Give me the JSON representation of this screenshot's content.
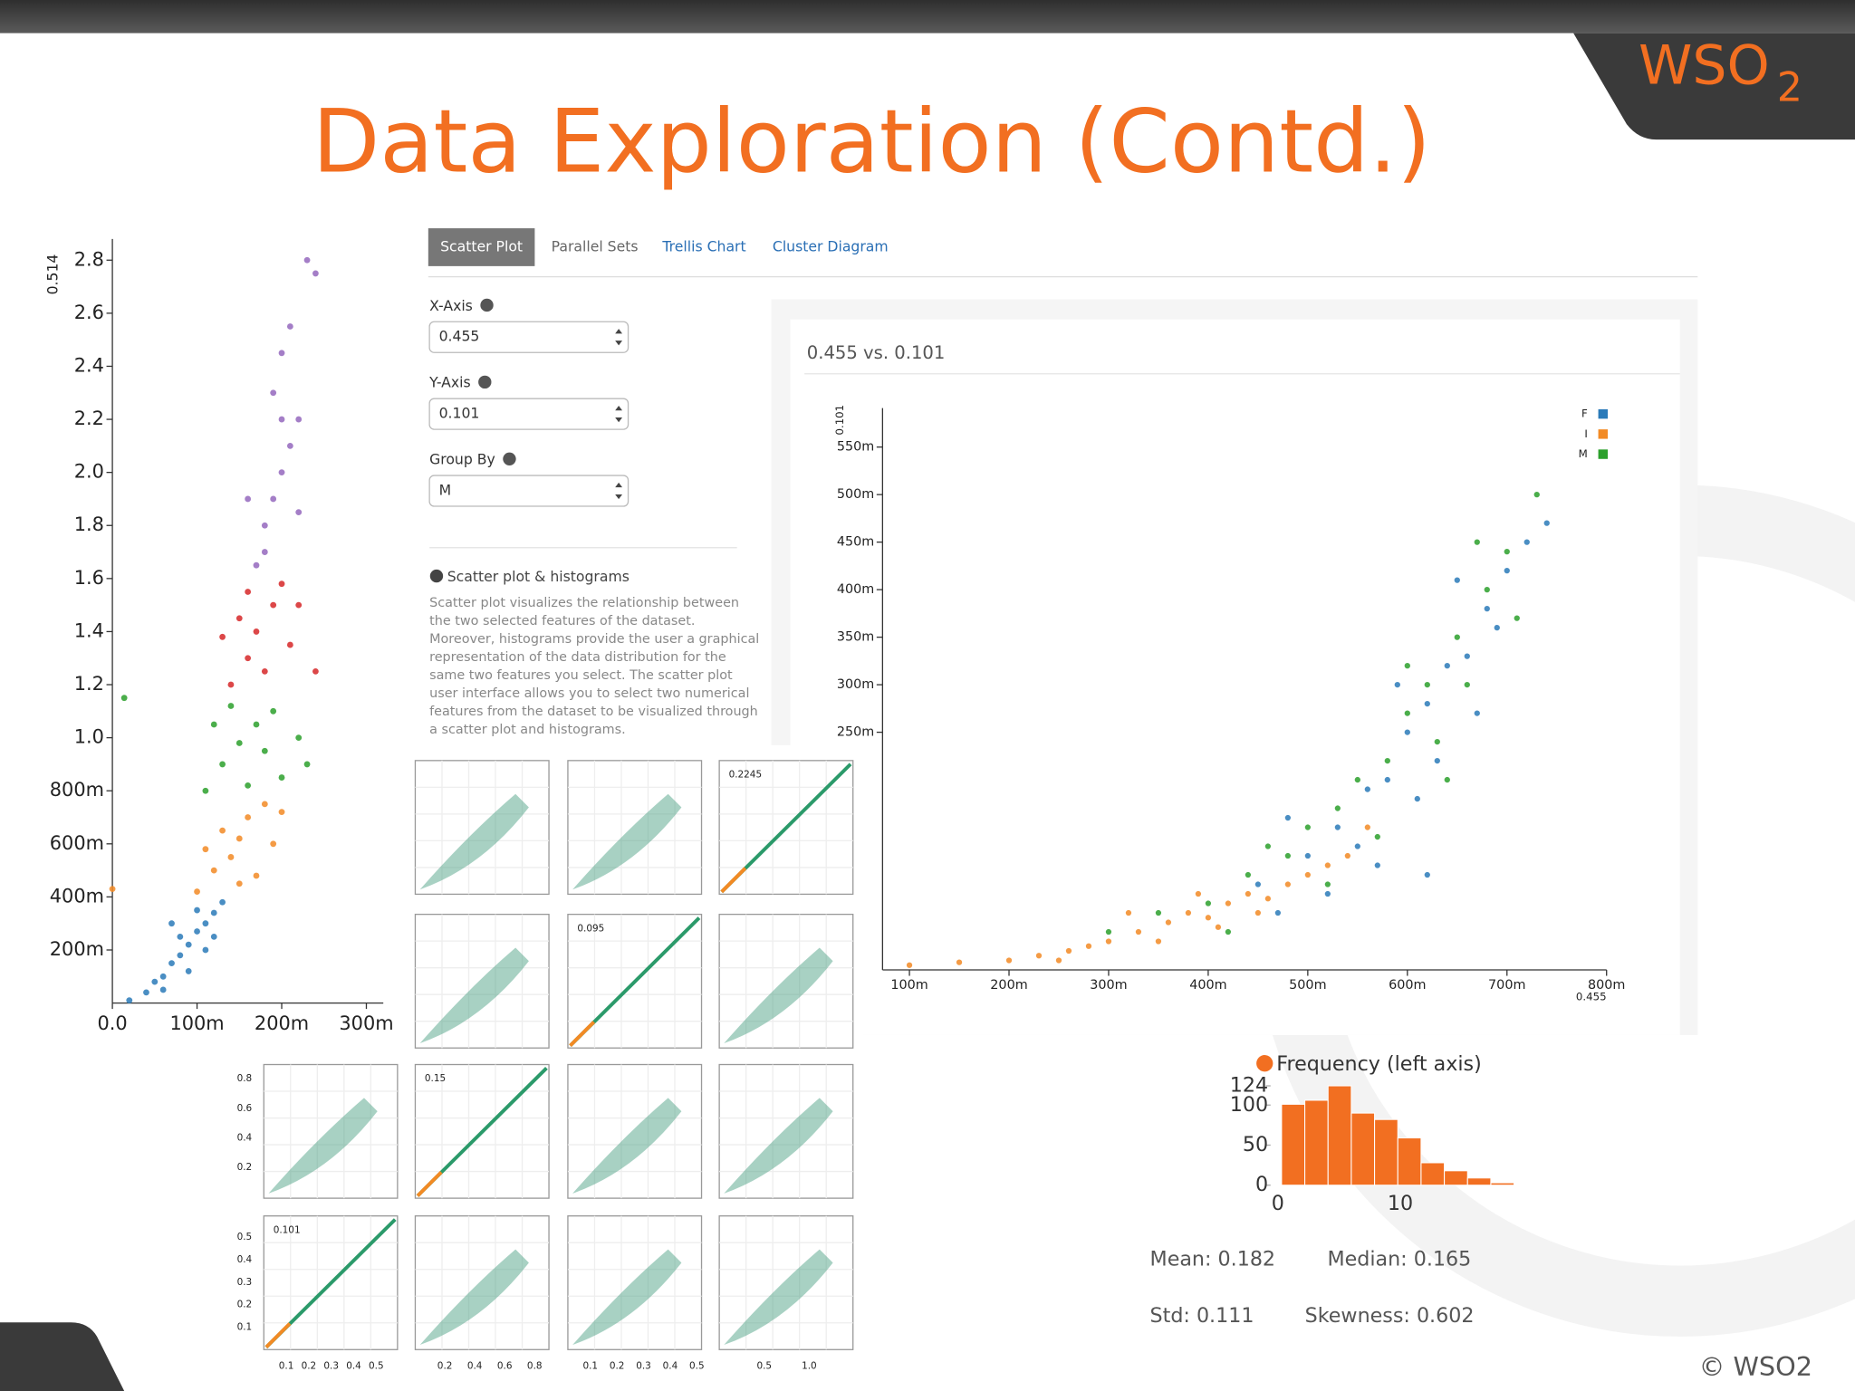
{
  "header": {
    "title": "Data Exploration (Contd.)",
    "logo": "WSO",
    "logo_sub": "2"
  },
  "tabs": [
    "Scatter Plot",
    "Parallel Sets",
    "Trellis Chart",
    "Cluster Diagram"
  ],
  "form": [
    {
      "label": "X-Axis",
      "value": "0.455"
    },
    {
      "label": "Y-Axis",
      "value": "0.101"
    },
    {
      "label": "Group By",
      "value": "M"
    }
  ],
  "info": {
    "title": "Scatter plot & histograms",
    "lines": [
      "Scatter plot visualizes the relationship between",
      "the two selected features of the dataset.",
      "Moreover, histograms provide the user a graphical",
      "representation of the data distribution for the",
      "same two features you select. The scatter plot",
      "user interface allows you to select two numerical",
      "features from the dataset to be visualized through",
      "a scatter plot and histograms."
    ]
  },
  "chart_data": [
    {
      "type": "scatter",
      "y_label": "0.514",
      "xlim": [
        0,
        0.32
      ],
      "ylim": [
        0,
        2.88
      ],
      "xticks": [
        {
          "value": 0,
          "label": "0.0"
        },
        {
          "value": 0.1,
          "label": "100m"
        },
        {
          "value": 0.2,
          "label": "200m"
        },
        {
          "value": 0.3,
          "label": "300m"
        }
      ],
      "yticks": [
        {
          "value": 0.2,
          "label": "200m"
        },
        {
          "value": 0.4,
          "label": "400m"
        },
        {
          "value": 0.6,
          "label": "600m"
        },
        {
          "value": 0.8,
          "label": "800m"
        },
        {
          "value": 1.0,
          "label": "1.0"
        },
        {
          "value": 1.2,
          "label": "1.2"
        },
        {
          "value": 1.4,
          "label": "1.4"
        },
        {
          "value": 1.6,
          "label": "1.6"
        },
        {
          "value": 1.8,
          "label": "1.8"
        },
        {
          "value": 2.0,
          "label": "2.0"
        },
        {
          "value": 2.2,
          "label": "2.2"
        },
        {
          "value": 2.4,
          "label": "2.4"
        },
        {
          "value": 2.6,
          "label": "2.6"
        },
        {
          "value": 2.8,
          "label": "2.8"
        }
      ],
      "series": [
        {
          "color": "#2a7ab9",
          "x": [
            0.02,
            0.04,
            0.05,
            0.06,
            0.07,
            0.08,
            0.09,
            0.1,
            0.11,
            0.12,
            0.08,
            0.1,
            0.13,
            0.06,
            0.09,
            0.11,
            0.07,
            0.12
          ],
          "values": [
            0.01,
            0.04,
            0.08,
            0.1,
            0.15,
            0.18,
            0.22,
            0.27,
            0.3,
            0.34,
            0.25,
            0.35,
            0.38,
            0.05,
            0.12,
            0.2,
            0.3,
            0.25
          ]
        },
        {
          "color": "#f28a24",
          "x": [
            0.1,
            0.12,
            0.14,
            0.15,
            0.16,
            0.18,
            0.13,
            0.17,
            0.19,
            0.11,
            0.2,
            0.15,
            0.0
          ],
          "values": [
            0.42,
            0.5,
            0.55,
            0.62,
            0.7,
            0.75,
            0.65,
            0.48,
            0.6,
            0.58,
            0.72,
            0.45,
            0.43
          ]
        },
        {
          "color": "#2ca02c",
          "x": [
            0.11,
            0.13,
            0.15,
            0.17,
            0.19,
            0.14,
            0.2,
            0.16,
            0.18,
            0.22,
            0.12,
            0.23,
            0.014
          ],
          "values": [
            0.8,
            0.9,
            0.98,
            1.05,
            1.1,
            1.12,
            0.85,
            0.82,
            0.95,
            1.0,
            1.05,
            0.9,
            1.15
          ]
        },
        {
          "color": "#d62728",
          "x": [
            0.14,
            0.16,
            0.17,
            0.19,
            0.2,
            0.15,
            0.21,
            0.18,
            0.22,
            0.13,
            0.24,
            0.16
          ],
          "values": [
            1.2,
            1.3,
            1.4,
            1.5,
            1.58,
            1.45,
            1.35,
            1.25,
            1.5,
            1.38,
            1.25,
            1.55
          ]
        },
        {
          "color": "#9467bd",
          "x": [
            0.17,
            0.18,
            0.19,
            0.2,
            0.2,
            0.21,
            0.19,
            0.2,
            0.22,
            0.16,
            0.21,
            0.23,
            0.24,
            0.22,
            0.18
          ],
          "values": [
            1.65,
            1.8,
            1.9,
            2.0,
            2.2,
            2.1,
            2.3,
            2.45,
            1.85,
            1.9,
            2.55,
            2.8,
            2.75,
            2.2,
            1.7
          ]
        }
      ]
    },
    {
      "type": "scatter",
      "title": "0.455 vs. 0.101",
      "x_label": "0.455",
      "y_label": "0.101",
      "xlim": [
        0.073,
        0.8
      ],
      "ylim": [
        0,
        0.591
      ],
      "xticks": [
        {
          "value": 0.1,
          "label": "100m"
        },
        {
          "value": 0.2,
          "label": "200m"
        },
        {
          "value": 0.3,
          "label": "300m"
        },
        {
          "value": 0.4,
          "label": "400m"
        },
        {
          "value": 0.5,
          "label": "500m"
        },
        {
          "value": 0.6,
          "label": "600m"
        },
        {
          "value": 0.7,
          "label": "700m"
        },
        {
          "value": 0.8,
          "label": "800m"
        }
      ],
      "yticks": [
        {
          "value": 0.25,
          "label": "250m"
        },
        {
          "value": 0.3,
          "label": "300m"
        },
        {
          "value": 0.35,
          "label": "350m"
        },
        {
          "value": 0.4,
          "label": "400m"
        },
        {
          "value": 0.45,
          "label": "450m"
        },
        {
          "value": 0.5,
          "label": "500m"
        },
        {
          "value": 0.55,
          "label": "550m"
        }
      ],
      "legend": "top-right",
      "series": [
        {
          "name": "F",
          "color": "#2a7ab9",
          "x": [
            0.45,
            0.5,
            0.53,
            0.56,
            0.58,
            0.6,
            0.62,
            0.64,
            0.66,
            0.68,
            0.7,
            0.72,
            0.63,
            0.55,
            0.67,
            0.59,
            0.65,
            0.57,
            0.52,
            0.61,
            0.69,
            0.74,
            0.47,
            0.62,
            0.48
          ],
          "values": [
            0.09,
            0.12,
            0.15,
            0.19,
            0.2,
            0.25,
            0.28,
            0.32,
            0.33,
            0.38,
            0.42,
            0.45,
            0.22,
            0.13,
            0.27,
            0.3,
            0.41,
            0.11,
            0.08,
            0.18,
            0.36,
            0.47,
            0.06,
            0.1,
            0.16
          ]
        },
        {
          "name": "I",
          "color": "#f28a24",
          "x": [
            0.1,
            0.15,
            0.2,
            0.23,
            0.26,
            0.3,
            0.33,
            0.36,
            0.38,
            0.4,
            0.42,
            0.44,
            0.46,
            0.48,
            0.5,
            0.52,
            0.35,
            0.28,
            0.41,
            0.54,
            0.45,
            0.39,
            0.56,
            0.32,
            0.25
          ],
          "values": [
            0.005,
            0.008,
            0.01,
            0.015,
            0.02,
            0.03,
            0.04,
            0.05,
            0.06,
            0.055,
            0.07,
            0.08,
            0.075,
            0.09,
            0.1,
            0.11,
            0.03,
            0.025,
            0.045,
            0.12,
            0.06,
            0.08,
            0.15,
            0.06,
            0.01
          ]
        },
        {
          "name": "M",
          "color": "#2ca02c",
          "x": [
            0.3,
            0.35,
            0.4,
            0.44,
            0.48,
            0.5,
            0.53,
            0.55,
            0.58,
            0.6,
            0.62,
            0.65,
            0.68,
            0.7,
            0.73,
            0.66,
            0.57,
            0.46,
            0.63,
            0.71,
            0.6,
            0.52,
            0.42,
            0.67,
            0.64
          ],
          "values": [
            0.04,
            0.06,
            0.07,
            0.1,
            0.12,
            0.15,
            0.17,
            0.2,
            0.22,
            0.27,
            0.3,
            0.35,
            0.4,
            0.44,
            0.5,
            0.3,
            0.14,
            0.13,
            0.24,
            0.37,
            0.32,
            0.09,
            0.04,
            0.45,
            0.2
          ]
        }
      ]
    },
    {
      "type": "histogram",
      "xlim": [
        -0.5,
        19.8
      ],
      "ylim": [
        0,
        124
      ],
      "xticks": [
        0,
        10
      ],
      "yticks": [
        0,
        50,
        100,
        124
      ],
      "bins": [
        0.3,
        2.2,
        4.1,
        6.0,
        7.9,
        9.8,
        11.7,
        13.6,
        15.5,
        17.4,
        19.3
      ],
      "series": [
        {
          "name": "Frequency (left axis)",
          "color": "#f26f21",
          "values": [
            101,
            106,
            124,
            90,
            82,
            59,
            28,
            18,
            9,
            3
          ]
        }
      ]
    }
  ],
  "scatter_matrix": {
    "diagonal_labels": [
      "0.2245",
      "0.095",
      "0.15",
      "0.101"
    ],
    "row3_yticks": [
      "0.8",
      "0.6",
      "0.4",
      "0.2"
    ],
    "row4_yticks": [
      "0.5",
      "0.4",
      "0.3",
      "0.2",
      "0.1"
    ],
    "xticks": [
      [
        "0.1",
        "0.2",
        "0.3",
        "0.4",
        "0.5"
      ],
      [
        "0.2",
        "0.4",
        "0.6",
        "0.8"
      ],
      [
        "0.1",
        "0.2",
        "0.3",
        "0.4",
        "0.5"
      ],
      [
        "0.5",
        "1.0"
      ]
    ]
  },
  "stats": [
    "Mean: 0.182",
    "Median: 0.165",
    "Std: 0.111",
    "Skewness: 0.602"
  ],
  "footer": "© WSO2"
}
